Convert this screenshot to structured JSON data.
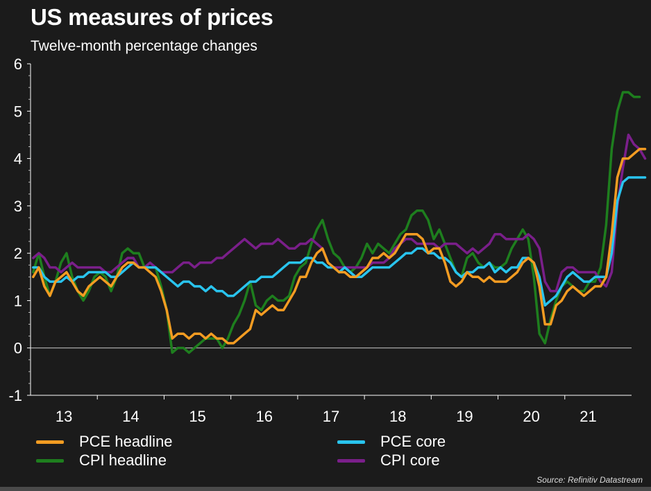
{
  "chart_data": {
    "type": "line",
    "title": "US measures of prices",
    "subtitle": "Twelve-month percentage changes",
    "xlabel": "",
    "ylabel": "",
    "ylim": [
      -1,
      6
    ],
    "yticks": [
      -1,
      0,
      1,
      2,
      3,
      4,
      5,
      6
    ],
    "xlim": [
      2012.5,
      2021.5
    ],
    "xticks": [
      {
        "label": "13",
        "x": 2013.0
      },
      {
        "label": "14",
        "x": 2014.0
      },
      {
        "label": "15",
        "x": 2015.0
      },
      {
        "label": "16",
        "x": 2016.0
      },
      {
        "label": "17",
        "x": 2017.0
      },
      {
        "label": "18",
        "x": 2018.0
      },
      {
        "label": "19",
        "x": 2019.0
      },
      {
        "label": "20",
        "x": 2020.0
      },
      {
        "label": "21",
        "x": 2020.85
      }
    ],
    "x_start": 2012.54,
    "x_step": 0.0833,
    "legend_position": "bottom",
    "source": "Source: Refinitiv Datastream",
    "series": [
      {
        "name": "PCE headline",
        "color": "#f39c22",
        "values": [
          1.5,
          1.7,
          1.3,
          1.1,
          1.4,
          1.5,
          1.6,
          1.4,
          1.2,
          1.1,
          1.3,
          1.4,
          1.5,
          1.4,
          1.3,
          1.5,
          1.7,
          1.8,
          1.8,
          1.7,
          1.7,
          1.6,
          1.5,
          1.2,
          0.8,
          0.2,
          0.3,
          0.3,
          0.2,
          0.3,
          0.3,
          0.2,
          0.3,
          0.2,
          0.2,
          0.1,
          0.1,
          0.2,
          0.3,
          0.4,
          0.8,
          0.7,
          0.8,
          0.9,
          0.8,
          0.8,
          1.0,
          1.2,
          1.5,
          1.5,
          1.8,
          2.0,
          2.1,
          1.8,
          1.7,
          1.6,
          1.6,
          1.5,
          1.5,
          1.6,
          1.7,
          1.9,
          1.9,
          2.0,
          1.9,
          2.0,
          2.2,
          2.4,
          2.4,
          2.4,
          2.3,
          2.0,
          2.1,
          2.1,
          1.8,
          1.4,
          1.3,
          1.4,
          1.6,
          1.5,
          1.5,
          1.4,
          1.5,
          1.4,
          1.4,
          1.4,
          1.5,
          1.6,
          1.8,
          1.9,
          1.8,
          1.3,
          0.5,
          0.5,
          0.9,
          1.0,
          1.2,
          1.3,
          1.2,
          1.1,
          1.2,
          1.3,
          1.3,
          1.5,
          2.4,
          3.6,
          4.0,
          4.0,
          4.1,
          4.2,
          4.2
        ]
      },
      {
        "name": "PCE core",
        "color": "#29c4ee",
        "values": [
          1.7,
          1.7,
          1.5,
          1.4,
          1.4,
          1.4,
          1.5,
          1.4,
          1.5,
          1.5,
          1.6,
          1.6,
          1.6,
          1.6,
          1.5,
          1.5,
          1.6,
          1.7,
          1.8,
          1.7,
          1.7,
          1.7,
          1.7,
          1.6,
          1.5,
          1.4,
          1.3,
          1.4,
          1.4,
          1.3,
          1.3,
          1.2,
          1.3,
          1.2,
          1.2,
          1.1,
          1.1,
          1.2,
          1.3,
          1.4,
          1.4,
          1.5,
          1.5,
          1.5,
          1.6,
          1.7,
          1.8,
          1.8,
          1.8,
          1.9,
          1.9,
          1.8,
          1.8,
          1.7,
          1.7,
          1.6,
          1.7,
          1.6,
          1.5,
          1.5,
          1.6,
          1.7,
          1.7,
          1.7,
          1.7,
          1.8,
          1.9,
          2.0,
          2.0,
          2.1,
          2.1,
          2.0,
          2.0,
          1.9,
          1.9,
          1.8,
          1.6,
          1.5,
          1.6,
          1.6,
          1.7,
          1.7,
          1.8,
          1.6,
          1.7,
          1.6,
          1.7,
          1.7,
          1.9,
          1.9,
          1.8,
          1.5,
          0.9,
          1.0,
          1.1,
          1.3,
          1.5,
          1.6,
          1.5,
          1.4,
          1.4,
          1.5,
          1.5,
          1.5,
          2.0,
          3.1,
          3.5,
          3.6,
          3.6,
          3.6,
          3.6
        ]
      },
      {
        "name": "CPI headline",
        "color": "#1e7e1e",
        "values": [
          1.6,
          2.0,
          1.5,
          1.1,
          1.4,
          1.8,
          2.0,
          1.5,
          1.2,
          1.0,
          1.2,
          1.5,
          1.6,
          1.5,
          1.2,
          1.5,
          2.0,
          2.1,
          2.0,
          2.0,
          1.7,
          1.7,
          1.7,
          1.3,
          0.8,
          -0.1,
          0.0,
          0.0,
          -0.1,
          0.0,
          0.1,
          0.2,
          0.2,
          0.2,
          0.0,
          0.2,
          0.5,
          0.7,
          1.0,
          1.4,
          0.9,
          0.8,
          1.0,
          1.1,
          1.0,
          1.0,
          1.1,
          1.5,
          1.7,
          1.8,
          2.2,
          2.5,
          2.7,
          2.3,
          2.0,
          1.9,
          1.7,
          1.6,
          1.7,
          1.9,
          2.2,
          2.0,
          2.2,
          2.1,
          2.0,
          2.2,
          2.4,
          2.5,
          2.8,
          2.9,
          2.9,
          2.7,
          2.3,
          2.5,
          2.2,
          1.9,
          1.6,
          1.5,
          1.9,
          2.0,
          1.8,
          1.7,
          1.8,
          1.7,
          1.7,
          1.8,
          2.1,
          2.3,
          2.5,
          2.3,
          1.5,
          0.3,
          0.1,
          0.6,
          1.0,
          1.3,
          1.4,
          1.3,
          1.2,
          1.2,
          1.4,
          1.4,
          1.7,
          2.6,
          4.2,
          5.0,
          5.4,
          5.4,
          5.3,
          5.3
        ]
      },
      {
        "name": "CPI core",
        "color": "#7a1f8a",
        "values": [
          1.9,
          2.0,
          1.9,
          1.7,
          1.7,
          1.6,
          1.7,
          1.8,
          1.7,
          1.7,
          1.7,
          1.7,
          1.7,
          1.6,
          1.6,
          1.7,
          1.8,
          1.9,
          1.9,
          1.7,
          1.7,
          1.8,
          1.7,
          1.6,
          1.6,
          1.6,
          1.7,
          1.8,
          1.8,
          1.7,
          1.8,
          1.8,
          1.8,
          1.9,
          1.9,
          2.0,
          2.1,
          2.2,
          2.3,
          2.2,
          2.1,
          2.2,
          2.2,
          2.2,
          2.3,
          2.2,
          2.1,
          2.1,
          2.2,
          2.2,
          2.3,
          2.2,
          2.1,
          1.8,
          1.7,
          1.7,
          1.7,
          1.7,
          1.7,
          1.7,
          1.7,
          1.8,
          1.8,
          1.8,
          1.9,
          2.1,
          2.2,
          2.3,
          2.3,
          2.2,
          2.2,
          2.2,
          2.2,
          2.1,
          2.2,
          2.2,
          2.2,
          2.1,
          2.0,
          2.1,
          2.0,
          2.1,
          2.2,
          2.4,
          2.4,
          2.3,
          2.3,
          2.3,
          2.3,
          2.4,
          2.3,
          2.1,
          1.4,
          1.2,
          1.2,
          1.6,
          1.7,
          1.7,
          1.6,
          1.6,
          1.6,
          1.6,
          1.4,
          1.3,
          1.6,
          3.0,
          3.8,
          4.5,
          4.3,
          4.2,
          4.0
        ]
      }
    ]
  }
}
